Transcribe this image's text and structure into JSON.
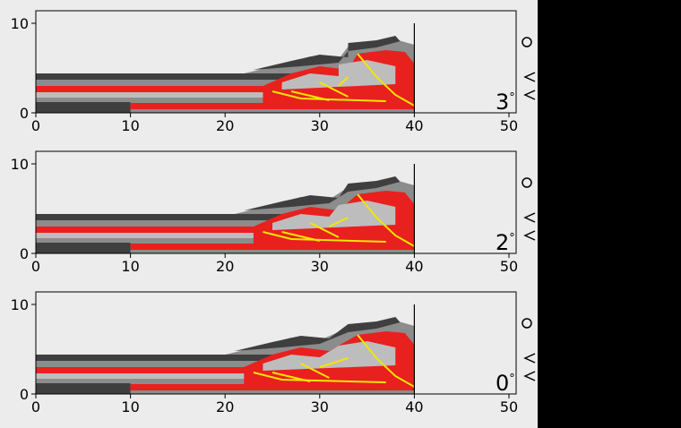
{
  "panels": [
    {
      "angle": "3",
      "degree_symbol": "°",
      "xlim": [
        0,
        50
      ],
      "ylim": [
        0,
        11
      ],
      "x_ticks": [
        "0",
        "10",
        "20",
        "30",
        "40",
        "50"
      ],
      "y_ticks": [
        "0",
        "10"
      ]
    },
    {
      "angle": "2",
      "degree_symbol": "°",
      "xlim": [
        0,
        50
      ],
      "ylim": [
        0,
        11
      ],
      "x_ticks": [
        "0",
        "10",
        "20",
        "30",
        "40",
        "50"
      ],
      "y_ticks": [
        "0",
        "10"
      ]
    },
    {
      "angle": "0",
      "degree_symbol": "°",
      "xlim": [
        0,
        50
      ],
      "ylim": [
        0,
        11
      ],
      "x_ticks": [
        "0",
        "10",
        "20",
        "30",
        "40",
        "50"
      ],
      "y_ticks": [
        "0",
        "10"
      ]
    }
  ],
  "colors": {
    "background": "#ececec",
    "dark_layer": "#3f3f3f",
    "grey_layer": "#8c8c8c",
    "light_layer": "#bdbdbd",
    "red_layer": "#e8201e",
    "fault_yellow": "#f2e600",
    "wall": "#000000",
    "outside": "#000000"
  }
}
